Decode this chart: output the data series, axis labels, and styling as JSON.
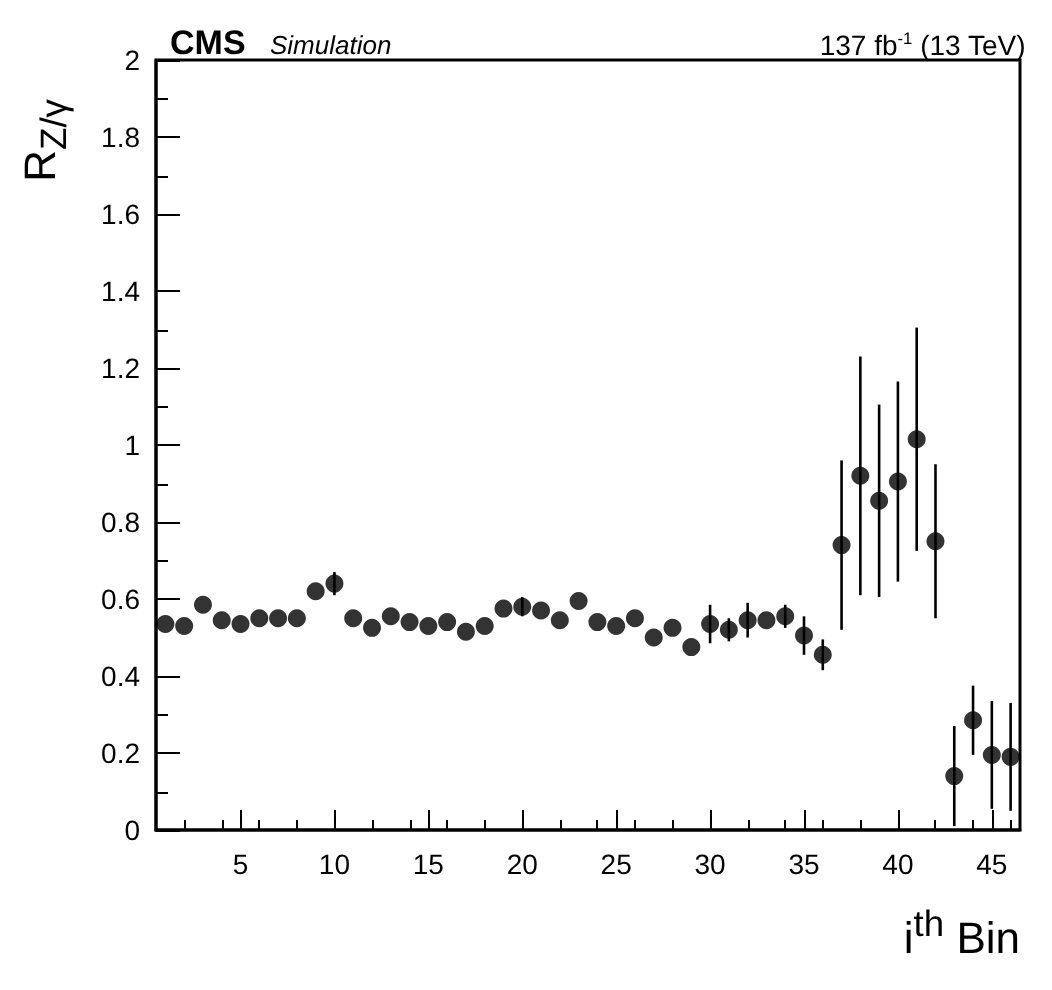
{
  "chart_data": {
    "type": "scatter",
    "title": "CMS",
    "subtitle": "Simulation",
    "annotations": [
      "137 fb$^{-1}$ (13 TeV)"
    ],
    "xlabel": "i$^{th}$ Bin",
    "ylabel": "R$_{Z/γ}$",
    "x": [
      1,
      2,
      3,
      4,
      5,
      6,
      7,
      8,
      9,
      10,
      11,
      12,
      13,
      14,
      15,
      16,
      17,
      18,
      19,
      20,
      21,
      22,
      23,
      24,
      25,
      26,
      27,
      28,
      29,
      30,
      31,
      32,
      33,
      34,
      35,
      36,
      37,
      38,
      39,
      40,
      41,
      42,
      43,
      44,
      45,
      46
    ],
    "series": [
      {
        "color": "#000000",
        "values": [
          0.535,
          0.53,
          0.585,
          0.545,
          0.535,
          0.55,
          0.55,
          0.55,
          0.62,
          0.64,
          0.55,
          0.525,
          0.555,
          0.54,
          0.53,
          0.54,
          0.515,
          0.53,
          0.575,
          0.58,
          0.57,
          0.545,
          0.595,
          0.54,
          0.53,
          0.55,
          0.5,
          0.525,
          0.475,
          0.535,
          0.52,
          0.545,
          0.545,
          0.555,
          0.505,
          0.455,
          0.74,
          0.92,
          0.855,
          0.905,
          1.015,
          0.75,
          0.14,
          0.285,
          0.195,
          0.19
        ],
        "errors": [
          null,
          null,
          null,
          null,
          null,
          null,
          null,
          null,
          null,
          0.03,
          null,
          null,
          null,
          null,
          null,
          null,
          null,
          null,
          null,
          0.025,
          null,
          null,
          null,
          null,
          null,
          null,
          null,
          null,
          null,
          0.05,
          0.03,
          0.045,
          null,
          0.03,
          0.05,
          0.04,
          0.22,
          0.31,
          0.25,
          0.26,
          0.29,
          0.2,
          0.13,
          0.09,
          0.14,
          0.14
        ]
      }
    ],
    "xlim": [
      0.5,
      46.5
    ],
    "xticks": [
      5,
      10,
      15,
      20,
      25,
      30,
      35,
      40,
      45
    ],
    "ylim": [
      0,
      2
    ],
    "yticks": [
      0,
      0.2,
      0.4,
      0.6,
      0.8,
      1,
      1.2,
      1.4,
      1.6,
      1.8,
      2
    ],
    "marker": "circle",
    "grid": false
  }
}
